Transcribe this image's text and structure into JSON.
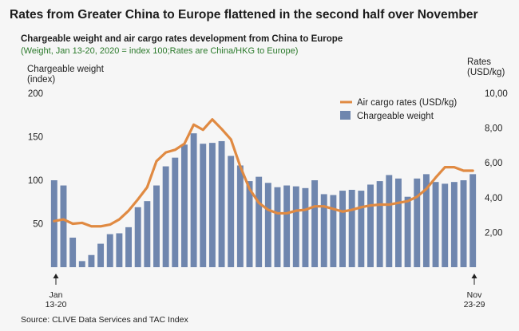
{
  "header": {
    "title": "Rates from Greater China to Europe flattened in the second half over November"
  },
  "chart_data": {
    "type": "bar",
    "title": "Chargeable weight and air cargo rates development from China to Europe",
    "subtitle": "(Weight, Jan 13-20, 2020 = index 100;Rates are China/HKG to Europe)",
    "y_left_label": [
      "Chargeable weight",
      "(index)"
    ],
    "y_right_label": [
      "Rates",
      "(USD/kg)"
    ],
    "y_left_ticks": [
      "50",
      "100",
      "150",
      "200"
    ],
    "y_right_ticks": [
      "2,00",
      "4,00",
      "6,00",
      "8,00",
      "10,00"
    ],
    "ylim_left": [
      0,
      200
    ],
    "ylim_right": [
      0,
      10
    ],
    "x_start_label": [
      "Jan",
      "13-20"
    ],
    "x_end_label": [
      "Nov",
      "23-29"
    ],
    "legend": {
      "placement": "top-right",
      "line_label": "Air cargo rates (USD/kg)",
      "bar_label": "Chargeable weight"
    },
    "colors": {
      "bar": "#6f86ae",
      "line": "#e08a42"
    },
    "series": [
      {
        "name": "Chargeable weight",
        "kind": "bar",
        "axis": "left",
        "values": [
          100,
          94,
          34,
          7,
          14,
          27,
          38,
          39,
          46,
          69,
          76,
          94,
          116,
          126,
          141,
          154,
          142,
          143,
          145,
          128,
          117,
          99,
          104,
          97,
          92,
          94,
          93,
          91,
          100,
          84,
          83,
          88,
          89,
          88,
          95,
          99,
          106,
          102,
          81,
          102,
          107,
          98,
          96,
          98,
          100,
          107
        ]
      },
      {
        "name": "Air cargo rates (USD/kg)",
        "kind": "line",
        "axis": "right",
        "values": [
          2.65,
          2.75,
          2.5,
          2.55,
          2.35,
          2.35,
          2.45,
          2.75,
          3.25,
          3.9,
          4.6,
          6.1,
          6.6,
          6.75,
          7.1,
          8.2,
          7.9,
          8.5,
          7.95,
          7.35,
          5.8,
          4.5,
          3.7,
          3.3,
          3.1,
          3.1,
          3.25,
          3.3,
          3.5,
          3.5,
          3.35,
          3.2,
          3.3,
          3.45,
          3.55,
          3.6,
          3.6,
          3.7,
          3.8,
          4.05,
          4.5,
          5.15,
          5.75,
          5.75,
          5.55,
          5.55
        ]
      }
    ]
  },
  "source": "Source: CLIVE Data Services and TAC Index"
}
